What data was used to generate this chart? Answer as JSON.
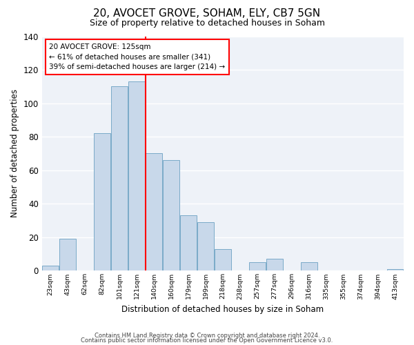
{
  "title": "20, AVOCET GROVE, SOHAM, ELY, CB7 5GN",
  "subtitle": "Size of property relative to detached houses in Soham",
  "xlabel": "Distribution of detached houses by size in Soham",
  "ylabel": "Number of detached properties",
  "bar_color": "#c8d8ea",
  "bar_edge_color": "#7aaac8",
  "background_color": "#ffffff",
  "plot_bg_color": "#eef2f8",
  "bins": [
    "23sqm",
    "43sqm",
    "62sqm",
    "82sqm",
    "101sqm",
    "121sqm",
    "140sqm",
    "160sqm",
    "179sqm",
    "199sqm",
    "218sqm",
    "238sqm",
    "257sqm",
    "277sqm",
    "296sqm",
    "316sqm",
    "335sqm",
    "355sqm",
    "374sqm",
    "394sqm",
    "413sqm"
  ],
  "values": [
    3,
    19,
    0,
    82,
    110,
    113,
    70,
    66,
    33,
    29,
    13,
    0,
    5,
    7,
    0,
    5,
    0,
    0,
    0,
    0,
    1
  ],
  "ylim": [
    0,
    140
  ],
  "yticks": [
    0,
    20,
    40,
    60,
    80,
    100,
    120,
    140
  ],
  "vline_x_index": 5.5,
  "annotation_line1": "20 AVOCET GROVE: 125sqm",
  "annotation_line2": "← 61% of detached houses are smaller (341)",
  "annotation_line3": "39% of semi-detached houses are larger (214) →",
  "annotation_box_color": "white",
  "annotation_box_edge_color": "red",
  "vline_color": "red",
  "footer1": "Contains HM Land Registry data © Crown copyright and database right 2024.",
  "footer2": "Contains public sector information licensed under the Open Government Licence v3.0."
}
